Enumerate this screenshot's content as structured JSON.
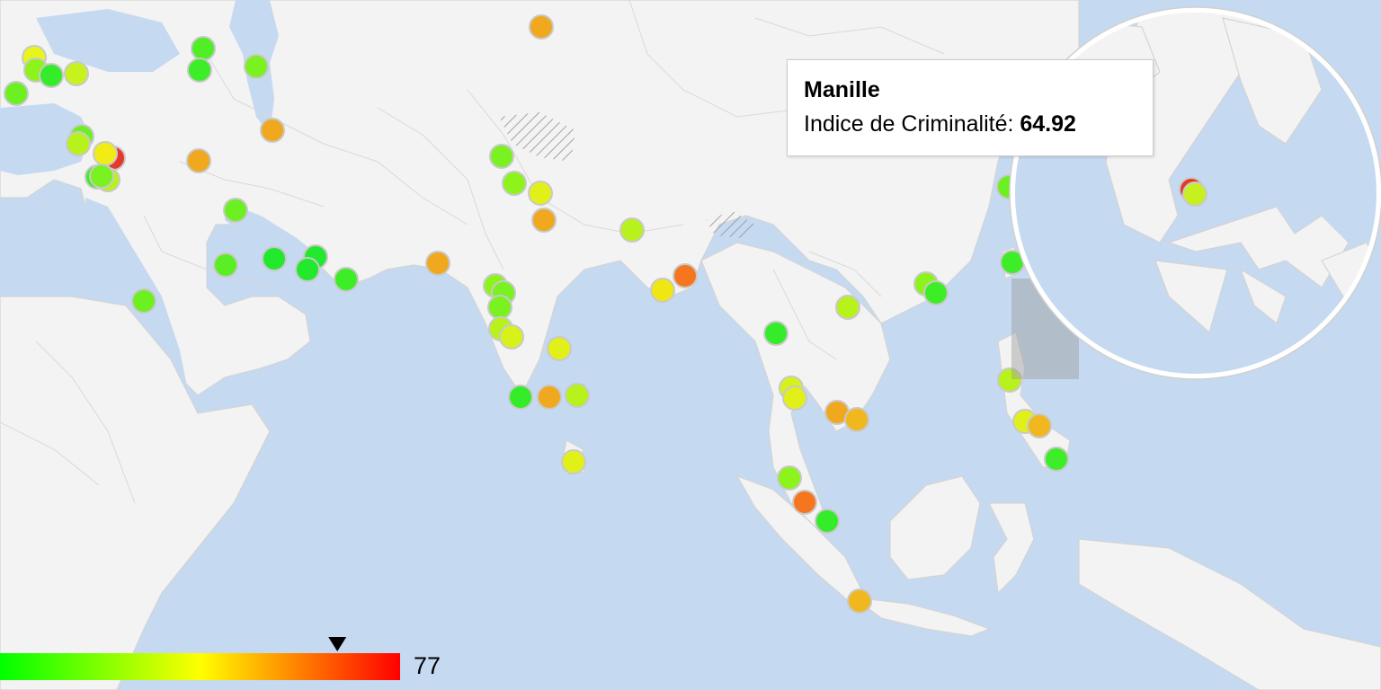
{
  "map": {
    "colors": {
      "ocean": "#c5d9f1",
      "land": "#f3f3f3",
      "border": "#d4d4d4",
      "scale_min": "#00ff00",
      "scale_mid": "#ffff00",
      "scale_max": "#ff0000"
    },
    "scale": {
      "min": 0,
      "max": 77,
      "max_label": "77",
      "indicator_value": 64.92
    },
    "tooltip": {
      "city": "Manille",
      "metric_label": "Indice de Criminalité:",
      "metric_value": "64.92"
    },
    "zoom_lens": {
      "focus_city": "Manille"
    }
  }
}
